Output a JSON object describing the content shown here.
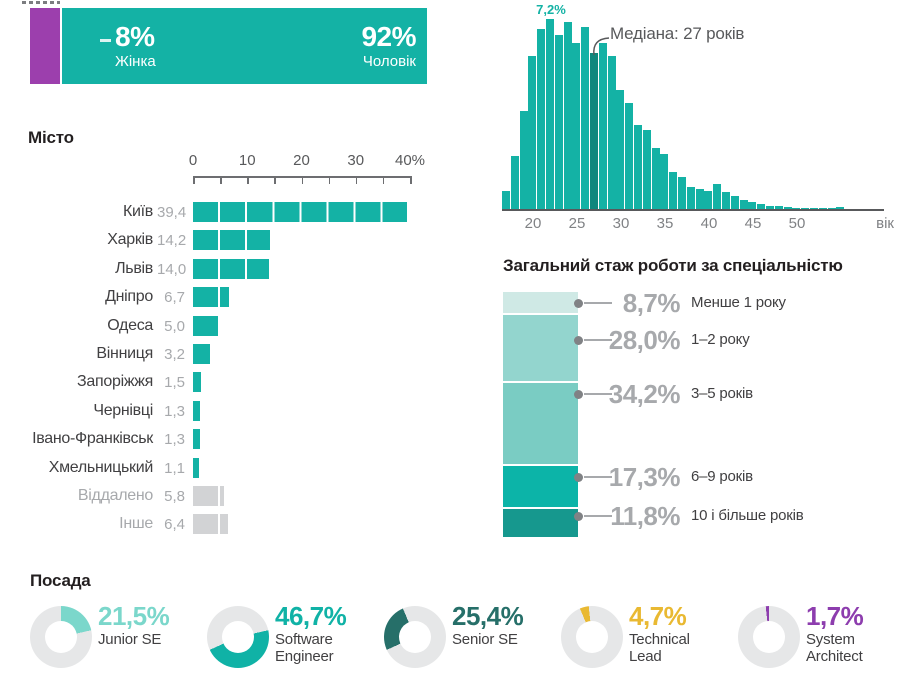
{
  "colors": {
    "teal": "#14b2a5",
    "teal_light": "#7bd7cb",
    "teal_dark": "#266f69",
    "teal_median": "#0f877d",
    "purple": "#9c3fad",
    "gold": "#e9b932",
    "purple_architect": "#8d3dae",
    "gray_bar": "#d2d3d5",
    "gray_value_text": "#a7a9ac",
    "gray_axis_text": "#808285",
    "dark_text": "#414042",
    "donut_track": "#e6e7e8"
  },
  "chart_data": [
    {
      "id": "gender",
      "type": "bar",
      "categories": [
        "Жінка",
        "Чоловік"
      ],
      "values": [
        8,
        92
      ],
      "labels": [
        "8%",
        "92%"
      ],
      "colors": [
        "#9c3fad",
        "#14b2a5"
      ]
    },
    {
      "id": "city",
      "type": "bar",
      "title": "Місто",
      "categories": [
        "Київ",
        "Харків",
        "Львів",
        "Дніпро",
        "Одеса",
        "Вінниця",
        "Запоріжжя",
        "Чернівці",
        "Івано-Франківськ",
        "Хмельницький",
        "Віддалено",
        "Інше"
      ],
      "values": [
        39.4,
        14.2,
        14.0,
        6.7,
        5.0,
        3.2,
        1.5,
        1.3,
        1.3,
        1.1,
        5.8,
        6.4
      ],
      "value_labels": [
        "39,4",
        "14,2",
        "14,0",
        "6,7",
        "5,0",
        "3,2",
        "1,5",
        "1,3",
        "1,3",
        "1,1",
        "5,8",
        "6,4"
      ],
      "muted": [
        false,
        false,
        false,
        false,
        false,
        false,
        false,
        false,
        false,
        false,
        true,
        true
      ],
      "axis_ticks": [
        "0",
        "10",
        "20",
        "30",
        "40%"
      ],
      "xlim": [
        0,
        40
      ],
      "grid": "white separators every 5 units"
    },
    {
      "id": "age-histogram",
      "type": "bar",
      "x": [
        17,
        18,
        19,
        20,
        21,
        22,
        23,
        24,
        25,
        26,
        27,
        28,
        29,
        30,
        31,
        32,
        33,
        34,
        35,
        36,
        37,
        38,
        39,
        40,
        41,
        42,
        43,
        44,
        45,
        46,
        47,
        48,
        49,
        50,
        51,
        52,
        53,
        54,
        55
      ],
      "values": [
        0.7,
        2.0,
        3.7,
        5.8,
        6.8,
        7.2,
        6.6,
        7.1,
        6.3,
        6.9,
        5.9,
        6.3,
        5.8,
        4.5,
        4.0,
        3.2,
        3.0,
        2.3,
        2.1,
        1.4,
        1.2,
        0.85,
        0.75,
        0.7,
        0.95,
        0.65,
        0.5,
        0.35,
        0.25,
        0.18,
        0.12,
        0.1,
        0.08,
        0.05,
        0.02,
        0.02,
        0.02,
        0.03,
        0.06
      ],
      "peak_label": "7,2%",
      "median_age": 27,
      "median_annotation": "Медіана: 27 років",
      "axis_ticks": [
        "20",
        "25",
        "30",
        "35",
        "40",
        "45",
        "50"
      ],
      "xlabel": "вік",
      "ylim": [
        0,
        7.5
      ]
    },
    {
      "id": "experience",
      "type": "stacked-bar",
      "title": "Загальний стаж роботи за спеціальністю",
      "categories": [
        "Менше 1 року",
        "1–2 року",
        "3–5 років",
        "6–9 років",
        "10 і більше років"
      ],
      "values": [
        8.7,
        28.0,
        34.2,
        17.3,
        11.8
      ],
      "value_labels": [
        "8,7%",
        "28,0%",
        "34,2%",
        "17,3%",
        "11,8%"
      ],
      "colors": [
        "#cfe9e5",
        "#93d5ce",
        "#7accc3",
        "#0cb4a8",
        "#16988e"
      ]
    },
    {
      "id": "positions",
      "type": "donut",
      "title": "Посада",
      "categories": [
        "Junior SE",
        "Software Engineer",
        "Senior SE",
        "Technical Lead",
        "System Architect"
      ],
      "values": [
        21.5,
        46.7,
        25.4,
        4.7,
        1.7
      ],
      "value_labels": [
        "21,5%",
        "46,7%",
        "25,4%",
        "4,7%",
        "1,7%"
      ],
      "colors": [
        "#7bd7cb",
        "#10b2a6",
        "#266f69",
        "#e9b932",
        "#8d3dae"
      ],
      "legend_position": "right of each donut"
    }
  ]
}
